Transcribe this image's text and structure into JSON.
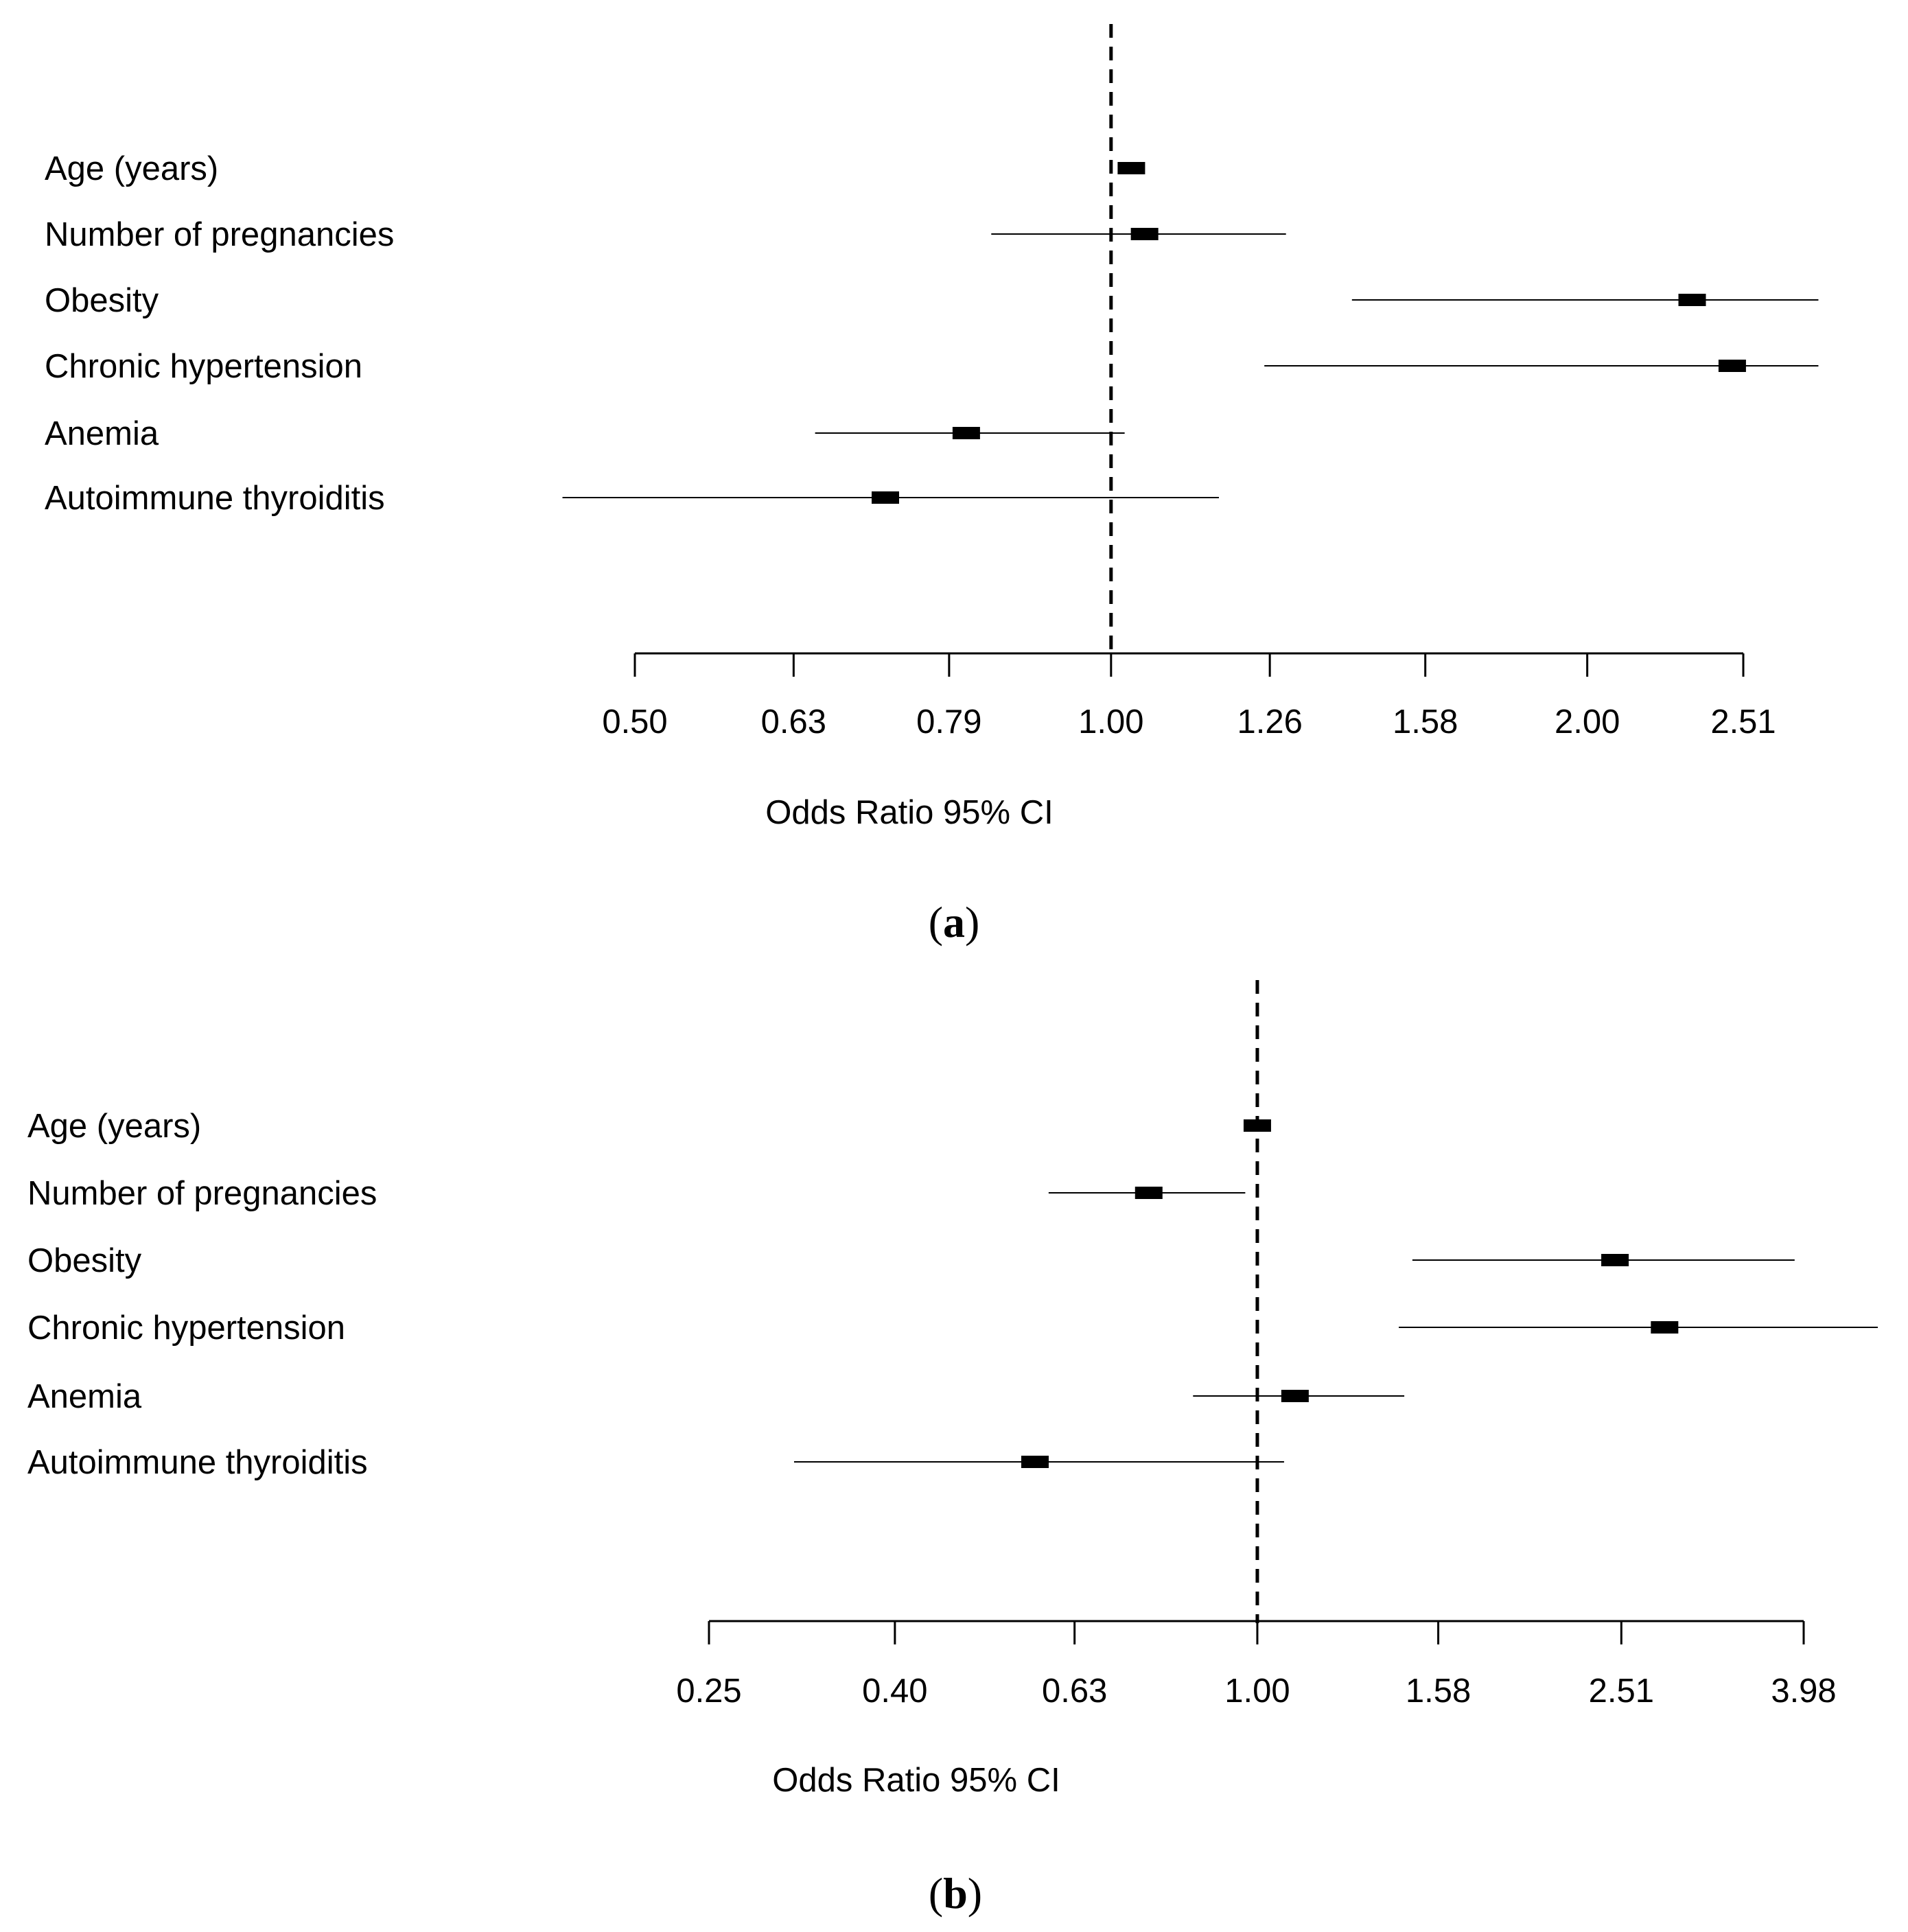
{
  "chart_data": [
    {
      "type": "forest",
      "panel": "(a)",
      "panel_letter": "a",
      "xlabel": "Odds Ratio 95% CI",
      "scale": "log",
      "reference_line": 1.0,
      "xlim": [
        0.5,
        2.51
      ],
      "ticks": [
        {
          "value": 0.5,
          "label": "0.50"
        },
        {
          "value": 0.63,
          "label": "0.63"
        },
        {
          "value": 0.79,
          "label": "0.79"
        },
        {
          "value": 1.0,
          "label": "1.00"
        },
        {
          "value": 1.26,
          "label": "1.26"
        },
        {
          "value": 1.58,
          "label": "1.58"
        },
        {
          "value": 2.0,
          "label": "2.00"
        },
        {
          "value": 2.51,
          "label": "2.51"
        }
      ],
      "rows": [
        {
          "label": "Age (years)",
          "or": 1.03,
          "lower": 1.02,
          "upper": 1.04
        },
        {
          "label": "Number of pregnancies",
          "or": 1.05,
          "lower": 0.84,
          "upper": 1.29
        },
        {
          "label": "Obesity",
          "or": 2.33,
          "lower": 1.42,
          "upper": 2.8
        },
        {
          "label": "Chronic hypertension",
          "or": 2.47,
          "lower": 1.25,
          "upper": 2.8
        },
        {
          "label": "Anemia",
          "or": 0.81,
          "lower": 0.65,
          "upper": 1.02
        },
        {
          "label": "Autoimmune thyroiditis",
          "or": 0.72,
          "lower": 0.45,
          "upper": 1.17
        }
      ]
    },
    {
      "type": "forest",
      "panel": "(b)",
      "panel_letter": "b",
      "xlabel": "Odds Ratio 95% CI",
      "scale": "log",
      "reference_line": 1.0,
      "xlim": [
        0.25,
        3.98
      ],
      "ticks": [
        {
          "value": 0.25,
          "label": "0.25"
        },
        {
          "value": 0.4,
          "label": "0.40"
        },
        {
          "value": 0.63,
          "label": "0.63"
        },
        {
          "value": 1.0,
          "label": "1.00"
        },
        {
          "value": 1.58,
          "label": "1.58"
        },
        {
          "value": 2.51,
          "label": "2.51"
        },
        {
          "value": 3.98,
          "label": "3.98"
        }
      ],
      "rows": [
        {
          "label": "Age (years)",
          "or": 1.0,
          "lower": 0.99,
          "upper": 1.02
        },
        {
          "label": "Number of pregnancies",
          "or": 0.76,
          "lower": 0.59,
          "upper": 0.97
        },
        {
          "label": "Obesity",
          "or": 2.47,
          "lower": 1.48,
          "upper": 3.89
        },
        {
          "label": "Chronic hypertension",
          "or": 2.8,
          "lower": 1.43,
          "upper": 4.8
        },
        {
          "label": "Anemia",
          "or": 1.1,
          "lower": 0.85,
          "upper": 1.45
        },
        {
          "label": "Autoimmune thyroiditis",
          "or": 0.57,
          "lower": 0.31,
          "upper": 1.07
        }
      ]
    }
  ]
}
